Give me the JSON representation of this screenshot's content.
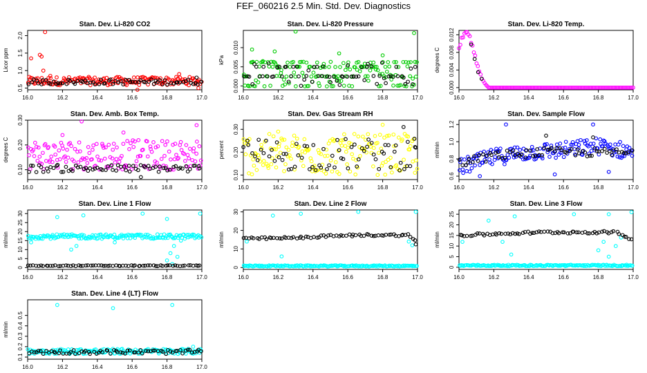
{
  "page_title": "FEF_060216  2.5 Min. Std. Dev. Diagnostics",
  "colors": {
    "red": "#ff0000",
    "green": "#00cc00",
    "magenta": "#ff00ff",
    "yellow": "#ffff00",
    "blue": "#0000ff",
    "cyan": "#00ffff",
    "black": "#000000"
  },
  "chart_data": [
    {
      "type": "scatter",
      "title": "Stan. Dev. Li-820 CO2",
      "ylabel": "Licor ppm",
      "xlim": [
        16.0,
        17.0
      ],
      "ylim": [
        0.45,
        2.15
      ],
      "xticks": [
        "16.0",
        "16.2",
        "16.4",
        "16.6",
        "16.8",
        "17.0"
      ],
      "yticks": [
        "0.5",
        "1.0",
        "1.5",
        "2.0"
      ],
      "series": [
        {
          "color": "red",
          "band": [
            0.58,
            0.82
          ],
          "spikes": [
            [
              16.02,
              1.35
            ],
            [
              16.07,
              1.45
            ],
            [
              16.08,
              1.4
            ],
            [
              16.09,
              1.0
            ],
            [
              16.1,
              2.1
            ],
            [
              16.13,
              0.85
            ],
            [
              16.63,
              0.45
            ],
            [
              16.87,
              0.9
            ],
            [
              16.98,
              0.5
            ]
          ]
        },
        {
          "color": "black",
          "band": [
            0.6,
            0.75
          ],
          "spikes": [
            [
              16.97,
              0.8
            ]
          ]
        }
      ]
    },
    {
      "type": "scatter",
      "title": "Stan. Dev. Li-820 Pressure",
      "ylabel": "kPa",
      "xlim": [
        16.0,
        17.0
      ],
      "ylim": [
        -0.001,
        0.0145
      ],
      "xticks": [
        "16.0",
        "16.2",
        "16.4",
        "16.6",
        "16.8",
        "17.0"
      ],
      "yticks": [
        "0.000",
        "0.005",
        "0.010"
      ],
      "series": [
        {
          "color": "green",
          "band": [
            0.0,
            0.0065
          ],
          "levels": [
            0.0,
            0.0025,
            0.005,
            0.0062
          ],
          "spikes": [
            [
              16.3,
              0.0142
            ],
            [
              16.05,
              0.0095
            ],
            [
              16.18,
              0.009
            ],
            [
              16.55,
              0.0085
            ],
            [
              16.8,
              0.008
            ],
            [
              16.98,
              0.0138
            ]
          ]
        },
        {
          "color": "black",
          "band": [
            0.0,
            0.0062
          ],
          "levels": [
            0.0025,
            0.005
          ],
          "spikes": []
        }
      ]
    },
    {
      "type": "scatter",
      "title": "Stan. Dev. Li-820 Temp.",
      "ylabel": "degrees C",
      "xlim": [
        16.0,
        17.0
      ],
      "ylim": [
        -0.0005,
        0.013
      ],
      "xticks": [
        "16.0",
        "16.2",
        "16.4",
        "16.6",
        "16.8",
        "17.0"
      ],
      "yticks": [
        "0.000",
        "0.004",
        "0.008",
        "0.012"
      ],
      "series": [
        {
          "color": "magenta",
          "decay": [
            [
              16.0,
              0.009
            ],
            [
              16.02,
              0.0115
            ],
            [
              16.04,
              0.0125
            ],
            [
              16.06,
              0.012
            ],
            [
              16.08,
              0.009
            ],
            [
              16.1,
              0.006
            ],
            [
              16.12,
              0.003
            ],
            [
              16.14,
              0.0015
            ],
            [
              16.16,
              0.0
            ],
            [
              17.0,
              0.0
            ]
          ]
        },
        {
          "color": "black",
          "spikes": [
            [
              16.07,
              0.0098
            ],
            [
              16.09,
              0.0065
            ],
            [
              16.11,
              0.0035
            ],
            [
              16.13,
              0.002
            ]
          ]
        }
      ]
    },
    {
      "type": "scatter",
      "title": "Stan. Dev. Amb. Box Temp.",
      "ylabel": "degrees C",
      "xlim": [
        16.0,
        17.0
      ],
      "ylim": [
        0.06,
        0.3
      ],
      "xticks": [
        "16.0",
        "16.2",
        "16.4",
        "16.6",
        "16.8",
        "17.0"
      ],
      "yticks": [
        "0.10",
        "0.20",
        "0.30"
      ],
      "series": [
        {
          "color": "magenta",
          "band": [
            0.1,
            0.22
          ],
          "spikes": [
            [
              16.31,
              0.295
            ],
            [
              16.97,
              0.28
            ],
            [
              16.55,
              0.25
            ],
            [
              16.2,
              0.24
            ]
          ]
        },
        {
          "color": "black",
          "band": [
            0.09,
            0.12
          ],
          "spikes": [
            [
              16.65,
              0.07
            ]
          ]
        }
      ]
    },
    {
      "type": "scatter",
      "title": "Stan. Dev. Gas Stream RH",
      "ylabel": "percent",
      "xlim": [
        16.0,
        17.0
      ],
      "ylim": [
        0.08,
        0.34
      ],
      "xticks": [
        "16.0",
        "16.2",
        "16.4",
        "16.6",
        "16.8",
        "17.0"
      ],
      "yticks": [
        "0.10",
        "0.20",
        "0.30"
      ],
      "series": [
        {
          "color": "yellow",
          "band": [
            0.1,
            0.28
          ],
          "spikes": [
            [
              16.8,
              0.32
            ],
            [
              16.2,
              0.29
            ]
          ]
        },
        {
          "color": "black",
          "band": [
            0.12,
            0.26
          ],
          "spikes": [
            [
              16.92,
              0.31
            ],
            [
              16.99,
              0.22
            ]
          ]
        }
      ]
    },
    {
      "type": "scatter",
      "title": "Stan. Dev. Sample Flow",
      "ylabel": "ml/min",
      "xlim": [
        16.0,
        17.0
      ],
      "ylim": [
        0.56,
        1.25
      ],
      "xticks": [
        "16.0",
        "16.2",
        "16.4",
        "16.6",
        "16.8",
        "17.0"
      ],
      "yticks": [
        "0.6",
        "0.8",
        "1.0",
        "1.2"
      ],
      "series": [
        {
          "color": "blue",
          "trend": [
            [
              16.0,
              0.7
            ],
            [
              16.2,
              0.82
            ],
            [
              16.4,
              0.88
            ],
            [
              16.6,
              0.9
            ],
            [
              16.8,
              0.95
            ],
            [
              17.0,
              0.88
            ]
          ],
          "spread": 0.1,
          "spikes": [
            [
              16.27,
              1.2
            ],
            [
              16.77,
              1.2
            ],
            [
              16.12,
              0.6
            ],
            [
              16.55,
              0.62
            ],
            [
              16.86,
              0.65
            ]
          ]
        },
        {
          "color": "black",
          "trend": [
            [
              16.0,
              0.75
            ],
            [
              16.2,
              0.84
            ],
            [
              16.5,
              0.88
            ],
            [
              17.0,
              0.87
            ]
          ],
          "spread": 0.05,
          "spikes": [
            [
              16.5,
              1.07
            ],
            [
              16.77,
              1.05
            ]
          ]
        }
      ]
    },
    {
      "type": "scatter",
      "title": "Stan. Dev. Line 1 Flow",
      "ylabel": "ml/min",
      "xlim": [
        16.0,
        17.0
      ],
      "ylim": [
        -1,
        32
      ],
      "xticks": [
        "16.0",
        "16.2",
        "16.4",
        "16.6",
        "16.8",
        "17.0"
      ],
      "yticks": [
        "0",
        "5",
        "10",
        "15",
        "20",
        "25",
        "30"
      ],
      "series": [
        {
          "color": "cyan",
          "band": [
            16,
            18.5
          ],
          "spikes": [
            [
              16.17,
              28
            ],
            [
              16.32,
              29
            ],
            [
              16.66,
              30
            ],
            [
              16.8,
              27
            ],
            [
              16.99,
              30
            ],
            [
              16.25,
              10
            ],
            [
              16.28,
              12
            ],
            [
              16.8,
              4
            ],
            [
              16.82,
              8
            ],
            [
              16.84,
              12
            ],
            [
              16.86,
              6
            ],
            [
              16.88,
              15
            ],
            [
              16.83,
              2
            ],
            [
              16.5,
              14
            ],
            [
              16.02,
              14
            ]
          ]
        },
        {
          "color": "black",
          "band": [
            0.8,
            1.3
          ],
          "spikes": []
        }
      ]
    },
    {
      "type": "scatter",
      "title": "Stan. Dev. Line 2 Flow",
      "ylabel": "ml/min",
      "xlim": [
        16.0,
        17.0
      ],
      "ylim": [
        -1,
        31
      ],
      "xticks": [
        "16.0",
        "16.2",
        "16.4",
        "16.6",
        "16.8",
        "17.0"
      ],
      "yticks": [
        "0",
        "10",
        "20",
        "30"
      ],
      "series": [
        {
          "color": "cyan",
          "band": [
            0.5,
            1.2
          ],
          "spikes": [
            [
              16.17,
              28
            ],
            [
              16.22,
              6
            ],
            [
              16.33,
              29
            ],
            [
              16.66,
              30
            ],
            [
              16.99,
              30
            ],
            [
              16.97,
              12
            ],
            [
              16.95,
              14
            ],
            [
              16.02,
              14
            ]
          ]
        },
        {
          "color": "black",
          "trend": [
            [
              16.0,
              15.5
            ],
            [
              16.3,
              16
            ],
            [
              16.5,
              17
            ],
            [
              16.7,
              17.5
            ],
            [
              16.95,
              17.5
            ],
            [
              17.0,
              13
            ]
          ],
          "spread": 0.6,
          "spikes": [
            [
              16.99,
              12.5
            ]
          ]
        }
      ]
    },
    {
      "type": "scatter",
      "title": "Stan. Dev. Line 3 Flow",
      "ylabel": "ml/min",
      "xlim": [
        16.0,
        17.0
      ],
      "ylim": [
        -1,
        27
      ],
      "xticks": [
        "16.0",
        "16.2",
        "16.4",
        "16.6",
        "16.8",
        "17.0"
      ],
      "yticks": [
        "0",
        "5",
        "10",
        "15",
        "20",
        "25"
      ],
      "series": [
        {
          "color": "cyan",
          "band": [
            0.5,
            1.2
          ],
          "spikes": [
            [
              16.17,
              22
            ],
            [
              16.32,
              24
            ],
            [
              16.66,
              25
            ],
            [
              16.86,
              25
            ],
            [
              16.99,
              26
            ],
            [
              16.25,
              12
            ],
            [
              16.3,
              6
            ],
            [
              16.8,
              8
            ],
            [
              16.83,
              12
            ],
            [
              16.86,
              5
            ],
            [
              16.9,
              10
            ],
            [
              16.93,
              14
            ],
            [
              16.02,
              12
            ]
          ]
        },
        {
          "color": "black",
          "trend": [
            [
              16.0,
              15
            ],
            [
              16.3,
              16
            ],
            [
              16.5,
              16.5
            ],
            [
              16.9,
              16.5
            ],
            [
              17.0,
              13
            ]
          ],
          "spread": 0.6,
          "spikes": []
        }
      ]
    },
    {
      "type": "scatter",
      "title": "Stan. Dev. Line 4 (LT) Flow",
      "ylabel": "ml/min",
      "xlim": [
        16.0,
        17.0
      ],
      "ylim": [
        0.08,
        0.65
      ],
      "xticks": [
        "16.0",
        "16.2",
        "16.4",
        "16.6",
        "16.8",
        "17.0"
      ],
      "yticks": [
        "0.1",
        "0.2",
        "0.3",
        "0.4",
        "0.5"
      ],
      "series": [
        {
          "color": "cyan",
          "band": [
            0.13,
            0.18
          ],
          "spikes": [
            [
              16.17,
              0.6
            ],
            [
              16.49,
              0.57
            ],
            [
              16.83,
              0.6
            ],
            [
              16.95,
              0.2
            ]
          ]
        },
        {
          "color": "black",
          "band": [
            0.13,
            0.17
          ],
          "spikes": [
            [
              16.98,
              0.17
            ]
          ]
        }
      ]
    }
  ]
}
